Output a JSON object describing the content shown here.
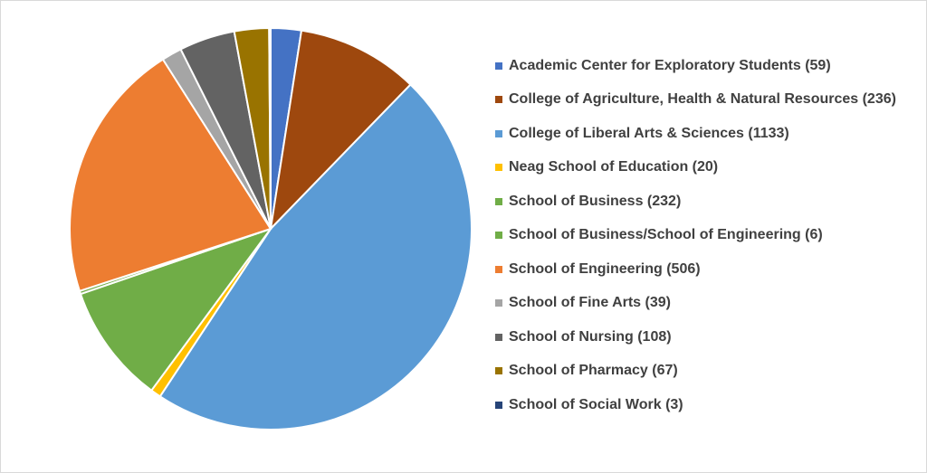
{
  "chart_data": {
    "type": "pie",
    "title": "",
    "start_angle_deg": 0,
    "direction": "clockwise",
    "legend_position": "right",
    "slices": [
      {
        "label": "Academic Center for Exploratory Students (59)",
        "value": 59,
        "color": "#4472c4"
      },
      {
        "label": "College of Agriculture, Health & Natural Resources (236)",
        "value": 236,
        "color": "#9e480e"
      },
      {
        "label": "College of Liberal Arts & Sciences (1133)",
        "value": 1133,
        "color": "#5b9bd5"
      },
      {
        "label": "Neag School of Education (20)",
        "value": 20,
        "color": "#ffc000"
      },
      {
        "label": "School of Business (232)",
        "value": 232,
        "color": "#70ad47"
      },
      {
        "label": "School of Business/School of Engineering (6)",
        "value": 6,
        "color": "#70ad47"
      },
      {
        "label": "School of Engineering (506)",
        "value": 506,
        "color": "#ed7d31"
      },
      {
        "label": "School of Fine Arts (39)",
        "value": 39,
        "color": "#a5a5a5"
      },
      {
        "label": "School of Nursing (108)",
        "value": 108,
        "color": "#636363"
      },
      {
        "label": "School of Pharmacy (67)",
        "value": 67,
        "color": "#997300"
      },
      {
        "label": "School of Social Work (3)",
        "value": 3,
        "color": "#264478"
      }
    ]
  }
}
